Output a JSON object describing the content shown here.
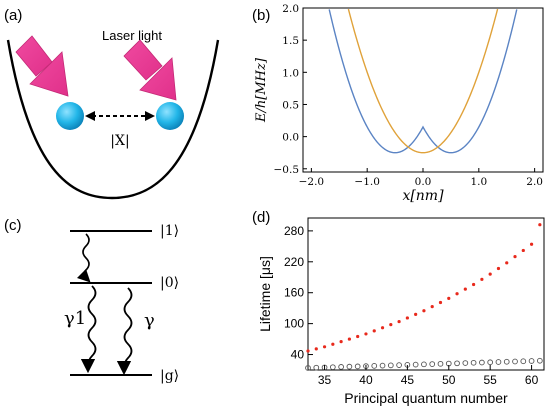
{
  "panel_a": {
    "label": "(a)",
    "laser_label": "Laser light",
    "distance_label": "|X|",
    "colors": {
      "laser": "#ee3b8f",
      "atom": "#1bb4e6"
    }
  },
  "panel_b": {
    "label": "(b)",
    "ylabel": "E/h[MHz]",
    "xlabel": "x[nm]",
    "xticks": [
      "−2.0",
      "−1.0",
      "0.0",
      "1.0",
      "2.0"
    ],
    "yticks": [
      "−0.5",
      "0.0",
      "0.5",
      "1.0",
      "1.5",
      "2.0"
    ]
  },
  "panel_c": {
    "label": "(c)",
    "levels": [
      "|1⟩",
      "|0⟩",
      "|g⟩"
    ],
    "rates": [
      "γ1",
      "γ"
    ]
  },
  "panel_d": {
    "label": "(d)",
    "ylabel": "Lifetime [μs]",
    "xlabel": "Principal quantum number",
    "xticks": [
      "35",
      "40",
      "45",
      "50",
      "55",
      "60"
    ],
    "yticks": [
      "40",
      "100",
      "160",
      "220",
      "280"
    ]
  },
  "chart_data": [
    {
      "type": "line",
      "panel": "b",
      "xlabel": "x[nm]",
      "ylabel": "E/h[MHz]",
      "xlim": [
        -2.15,
        2.15
      ],
      "ylim": [
        -0.55,
        2.0
      ],
      "series": [
        {
          "color": "#5b84c4",
          "x_min": -2.0,
          "x_max": 2.0,
          "branches": [
            {
              "center": -0.5,
              "scale": 1.6,
              "offset": -0.25
            },
            {
              "center": 0.5,
              "scale": 1.6,
              "offset": -0.25
            }
          ]
        },
        {
          "color": "#e0a23a",
          "x_min": -1.35,
          "x_max": 1.35,
          "branches": [
            {
              "center": 0.0,
              "scale": 1.25,
              "offset": -0.25
            }
          ]
        }
      ]
    },
    {
      "type": "scatter",
      "panel": "d",
      "xlabel": "Principal quantum number",
      "ylabel": "Lifetime [μs]",
      "xlim": [
        33,
        61.5
      ],
      "ylim": [
        10,
        305
      ],
      "series": [
        {
          "marker": "filled",
          "color": "#e8291c",
          "x": [
            33,
            34,
            35,
            36,
            37,
            38,
            39,
            40,
            41,
            42,
            43,
            44,
            45,
            46,
            47,
            48,
            49,
            50,
            51,
            52,
            53,
            54,
            55,
            56,
            57,
            58,
            59,
            60,
            61
          ],
          "y": [
            47,
            51,
            55,
            60,
            65,
            70,
            75,
            80,
            86,
            92,
            98,
            104,
            111,
            118,
            125,
            133,
            141,
            149,
            158,
            167,
            176,
            186,
            196,
            207,
            218,
            230,
            242,
            254,
            292
          ]
        },
        {
          "marker": "open",
          "color": "#555555",
          "x": [
            33,
            34,
            35,
            36,
            37,
            38,
            39,
            40,
            41,
            42,
            43,
            44,
            45,
            46,
            47,
            48,
            49,
            50,
            51,
            52,
            53,
            54,
            55,
            56,
            57,
            58,
            59,
            60,
            61
          ],
          "y": [
            14,
            14.5,
            15,
            15.5,
            16,
            16.5,
            17,
            17.5,
            18,
            18.5,
            19,
            19.5,
            20,
            20.5,
            21,
            21.5,
            22,
            22.5,
            23,
            23.5,
            24,
            24.5,
            25,
            25.5,
            26,
            26.5,
            27,
            27.5,
            28
          ]
        }
      ]
    }
  ]
}
